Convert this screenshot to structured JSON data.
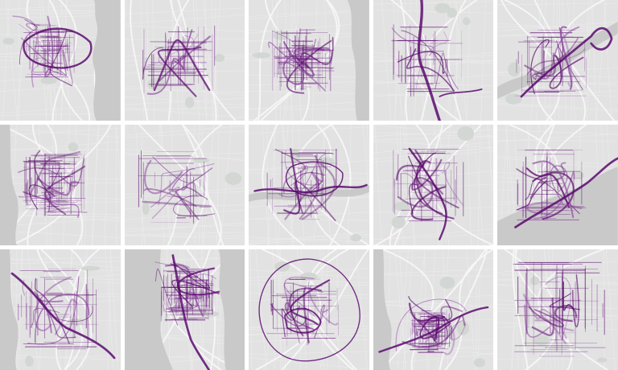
{
  "rows": 3,
  "cols": 5,
  "colors": {
    "route": "#5b0a6e",
    "route_light": "#8e4ba0",
    "land": "#e2e2e2",
    "water": "#c9c9c9",
    "road": "#f6f6f6",
    "gap": "#ffffff"
  },
  "tiles": [
    {
      "id": 0,
      "water": "right-bay",
      "style": "dense-center"
    },
    {
      "id": 1,
      "water": "none",
      "style": "scatter-net"
    },
    {
      "id": 2,
      "water": "right-lake",
      "style": "grid-dense"
    },
    {
      "id": 3,
      "water": "none",
      "style": "river-spine"
    },
    {
      "id": 4,
      "water": "river-diagonal",
      "style": "loop-corridor"
    },
    {
      "id": 5,
      "water": "left-river",
      "style": "grid-dense"
    },
    {
      "id": 6,
      "water": "none",
      "style": "grid-sparse"
    },
    {
      "id": 7,
      "water": "river-center",
      "style": "river-loop"
    },
    {
      "id": 8,
      "water": "none",
      "style": "diagonal-cluster"
    },
    {
      "id": 9,
      "water": "bottom-bay",
      "style": "coast-line"
    },
    {
      "id": 10,
      "water": "left-river",
      "style": "river-grid"
    },
    {
      "id": 11,
      "water": "peninsula",
      "style": "peninsula-grid"
    },
    {
      "id": 12,
      "water": "none",
      "style": "ring-city"
    },
    {
      "id": 13,
      "water": "left-river",
      "style": "downtown-grid"
    },
    {
      "id": 14,
      "water": "none",
      "style": "grid-wide"
    }
  ]
}
